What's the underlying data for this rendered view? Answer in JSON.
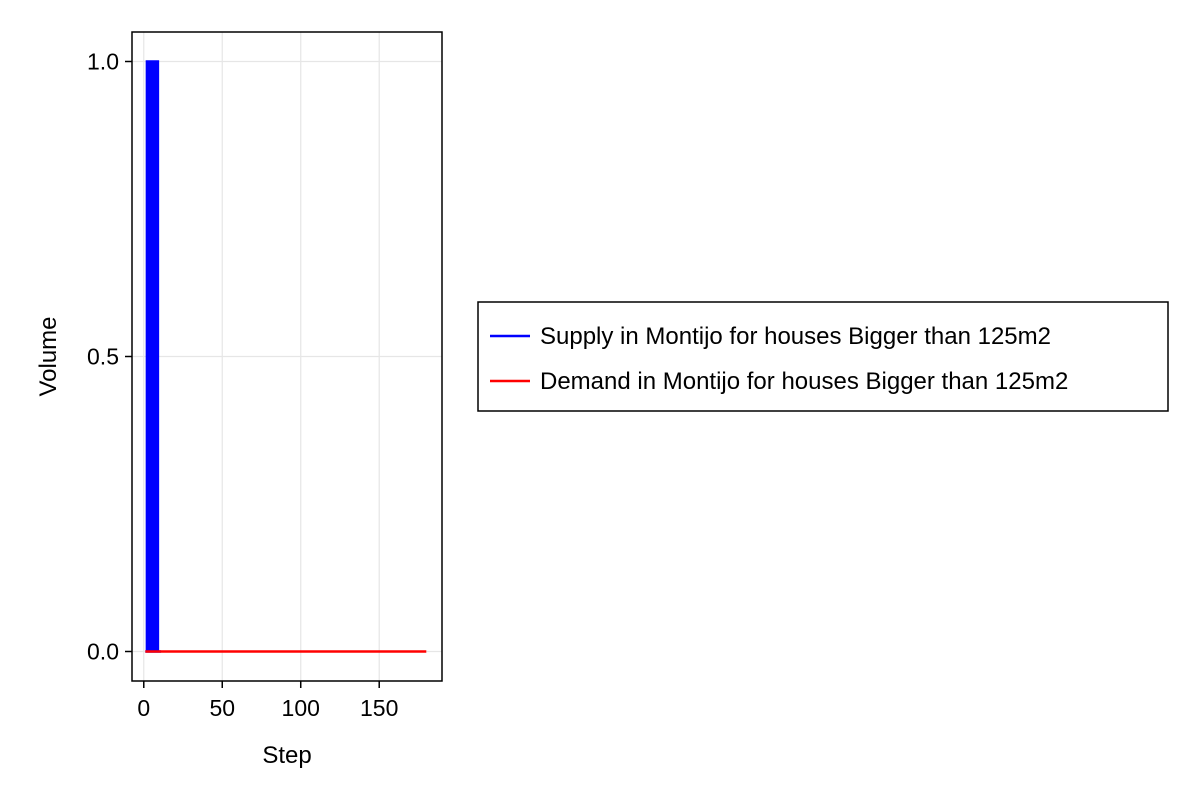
{
  "chart_data": {
    "type": "line",
    "xlabel": "Step",
    "ylabel": "Volume",
    "xlim": [
      -7.5,
      190
    ],
    "ylim": [
      -0.05,
      1.05
    ],
    "xticks": [
      0,
      50,
      100,
      150
    ],
    "yticks": [
      0.0,
      0.5,
      1.0
    ],
    "xtick_labels": [
      "0",
      "50",
      "100",
      "150"
    ],
    "ytick_labels": [
      "0.0",
      "0.5",
      "1.0"
    ],
    "grid": true,
    "legend_position": "right",
    "series": [
      {
        "name": "Supply in Montijo for houses Bigger than 125m2",
        "color": "#0000ff",
        "x": [
          1,
          2,
          2,
          3,
          3,
          4,
          4,
          5,
          5,
          6,
          6,
          7,
          7,
          8,
          8,
          9,
          9,
          10,
          10,
          11
        ],
        "y": [
          0,
          0,
          1,
          1,
          0,
          0,
          1,
          1,
          0,
          0,
          1,
          1,
          0,
          0,
          1,
          1,
          0,
          0,
          0,
          0
        ]
      },
      {
        "name": "Demand in Montijo for houses Bigger than 125m2",
        "color": "#ff0000",
        "x": [
          1,
          180
        ],
        "y": [
          0,
          0
        ]
      }
    ]
  }
}
